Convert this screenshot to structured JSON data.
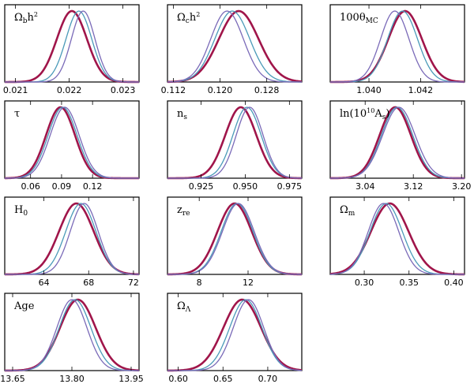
{
  "chart_data": [
    {
      "type": "line",
      "param": "Ωbh²",
      "label_main": "Ω",
      "label_sub": "b",
      "label_rest": "h",
      "label_sup": "2",
      "label_tail": "",
      "xlim": [
        0.0208,
        0.0233
      ],
      "ticks": [
        "0.021",
        "0.022",
        "0.023"
      ],
      "series": [
        {
          "mean": 0.02205,
          "sigma": 0.00028
        },
        {
          "mean": 0.02218,
          "sigma": 0.00024
        },
        {
          "mean": 0.02226,
          "sigma": 0.00022
        }
      ]
    },
    {
      "type": "line",
      "param": "Ωch²",
      "label_main": "Ω",
      "label_sub": "c",
      "label_rest": "h",
      "label_sup": "2",
      "label_tail": "",
      "xlim": [
        0.111,
        0.134
      ],
      "ticks": [
        "0.112",
        "0.120",
        "0.128"
      ],
      "series": [
        {
          "mean": 0.1232,
          "sigma": 0.0034
        },
        {
          "mean": 0.1221,
          "sigma": 0.003
        },
        {
          "mean": 0.1212,
          "sigma": 0.0028
        }
      ]
    },
    {
      "type": "line",
      "param": "100θMC",
      "label_main": "100θ",
      "label_sub": "MC",
      "label_rest": "",
      "label_sup": "",
      "label_tail": "",
      "xlim": [
        1.0385,
        1.0437
      ],
      "ticks": [
        "1.040",
        "1.042"
      ],
      "series": [
        {
          "mean": 1.0414,
          "sigma": 0.00065
        },
        {
          "mean": 1.0413,
          "sigma": 0.00058
        },
        {
          "mean": 1.041,
          "sigma": 0.00055
        }
      ]
    },
    {
      "type": "line",
      "param": "τ",
      "label_main": "τ",
      "label_sub": "",
      "label_rest": "",
      "label_sup": "",
      "label_tail": "",
      "xlim": [
        0.035,
        0.165
      ],
      "ticks": [
        "0.06",
        "0.09",
        "0.12"
      ],
      "series": [
        {
          "mean": 0.089,
          "sigma": 0.014
        },
        {
          "mean": 0.091,
          "sigma": 0.014
        },
        {
          "mean": 0.093,
          "sigma": 0.014
        }
      ]
    },
    {
      "type": "line",
      "param": "ns",
      "label_main": "n",
      "label_sub": "s",
      "label_rest": "",
      "label_sup": "",
      "label_tail": "",
      "xlim": [
        0.906,
        0.982
      ],
      "ticks": [
        "0.925",
        "0.950",
        "0.975"
      ],
      "series": [
        {
          "mean": 0.9475,
          "sigma": 0.0088
        },
        {
          "mean": 0.951,
          "sigma": 0.008
        },
        {
          "mean": 0.9525,
          "sigma": 0.0076
        }
      ]
    },
    {
      "type": "line",
      "param": "ln(10¹⁰As)",
      "label_main": "ln(10",
      "label_sub": "",
      "label_rest": "",
      "label_sup": "10",
      "label_tail": "A",
      "label_tail_sub": "s",
      "label_end": ")",
      "xlim": [
        2.982,
        3.205
      ],
      "ticks": [
        "3.04",
        "3.12",
        "3.20"
      ],
      "series": [
        {
          "mean": 3.09,
          "sigma": 0.026
        },
        {
          "mean": 3.093,
          "sigma": 0.026
        },
        {
          "mean": 3.096,
          "sigma": 0.027
        }
      ]
    },
    {
      "type": "line",
      "param": "H0",
      "label_main": "H",
      "label_sub": "0",
      "label_rest": "",
      "label_sup": "",
      "label_tail": "",
      "xlim": [
        60.5,
        72.5
      ],
      "ticks": [
        "64",
        "68",
        "72"
      ],
      "series": [
        {
          "mean": 66.9,
          "sigma": 1.55
        },
        {
          "mean": 67.3,
          "sigma": 1.35
        },
        {
          "mean": 67.6,
          "sigma": 1.25
        }
      ]
    },
    {
      "type": "line",
      "param": "zre",
      "label_main": "z",
      "label_sub": "re",
      "label_rest": "",
      "label_sup": "",
      "label_tail": "",
      "xlim": [
        5.4,
        16.4
      ],
      "ticks": [
        "8",
        "12"
      ],
      "series": [
        {
          "mean": 10.9,
          "sigma": 1.4
        },
        {
          "mean": 11.1,
          "sigma": 1.3
        },
        {
          "mean": 11.2,
          "sigma": 1.3
        }
      ]
    },
    {
      "type": "line",
      "param": "Ωm",
      "label_main": "Ω",
      "label_sub": "m",
      "label_rest": "",
      "label_sup": "",
      "label_tail": "",
      "xlim": [
        0.262,
        0.412
      ],
      "ticks": [
        "0.30",
        "0.35",
        "0.40"
      ],
      "series": [
        {
          "mean": 0.3285,
          "sigma": 0.021
        },
        {
          "mean": 0.3245,
          "sigma": 0.018
        },
        {
          "mean": 0.3215,
          "sigma": 0.017
        }
      ]
    },
    {
      "type": "line",
      "param": "Age",
      "label_main": "Age",
      "label_sub": "",
      "label_rest": "",
      "label_sup": "",
      "label_tail": "",
      "xlim": [
        13.63,
        13.97
      ],
      "ticks": [
        "13.65",
        "13.80",
        "13.95"
      ],
      "series": [
        {
          "mean": 13.815,
          "sigma": 0.045
        },
        {
          "mean": 13.808,
          "sigma": 0.04
        },
        {
          "mean": 13.8,
          "sigma": 0.038
        }
      ]
    },
    {
      "type": "line",
      "param": "ΩΛ",
      "label_main": "Ω",
      "label_sub": "Λ",
      "label_rest": "",
      "label_sup": "",
      "label_tail": "",
      "xlim": [
        0.588,
        0.738
      ],
      "ticks": [
        "0.60",
        "0.65",
        "0.70"
      ],
      "series": [
        {
          "mean": 0.6715,
          "sigma": 0.021
        },
        {
          "mean": 0.6755,
          "sigma": 0.018
        },
        {
          "mean": 0.6785,
          "sigma": 0.017
        }
      ]
    }
  ],
  "colors": {
    "series": [
      "#a0154a",
      "#4a9ab8",
      "#7a6ab8"
    ],
    "frame": "#000000"
  }
}
